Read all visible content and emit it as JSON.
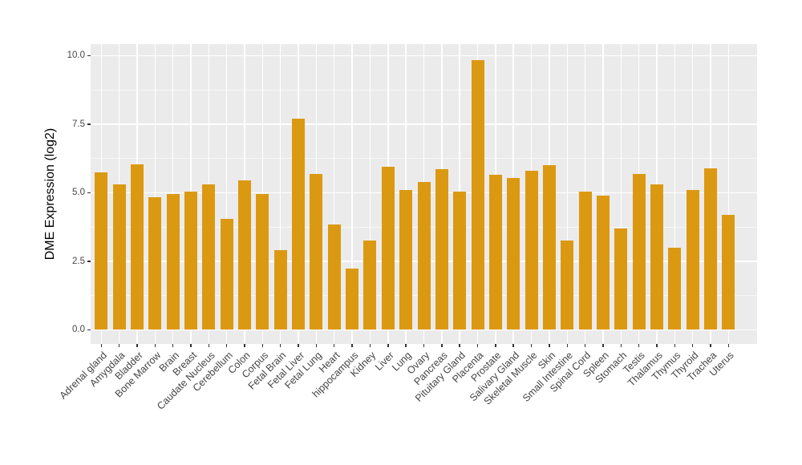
{
  "figure": {
    "background": "#FFFFFF"
  },
  "chart_data": {
    "type": "bar",
    "title": "",
    "xlabel": "",
    "ylabel": "DME Expression (log2)",
    "categories": [
      "Adrenal gland",
      "Amygdala",
      "Bladder",
      "Bone Marrow",
      "Brain",
      "Breast",
      "Caudate Nucleus",
      "Cerebellum",
      "Colon",
      "Corpus",
      "Fetal Brain",
      "Fetal Liver",
      "Fetal Lung",
      "Heart",
      "hippocampus",
      "Kidney",
      "Liver",
      "Lung",
      "Ovary",
      "Pancreas",
      "Pituitary Gland",
      "Placenta",
      "Prostate",
      "Salivary Gland",
      "Skeletal Muscle",
      "Skin",
      "Small Intestine",
      "Spinal Cord",
      "Spleen",
      "Stomach",
      "Testis",
      "Thalamus",
      "Thymus",
      "Thyroid",
      "Trachea",
      "Uterus"
    ],
    "values": [
      5.75,
      5.3,
      6.05,
      4.85,
      4.95,
      5.05,
      5.3,
      4.05,
      5.45,
      4.95,
      2.9,
      7.7,
      5.7,
      3.85,
      2.25,
      3.25,
      5.95,
      5.1,
      5.4,
      5.85,
      5.05,
      9.85,
      5.65,
      5.55,
      5.8,
      6.0,
      3.25,
      5.05,
      4.9,
      3.7,
      5.7,
      5.3,
      3.0,
      5.1,
      5.9,
      4.2
    ],
    "ylim": [
      -0.5,
      10.45
    ],
    "yticks": {
      "values": [
        0,
        2.5,
        5,
        7.5,
        10
      ],
      "labels": [
        "0.0",
        "2.5",
        "5.0",
        "7.5",
        "10.0"
      ],
      "minor_values": [
        1.25,
        3.75,
        6.25,
        8.75
      ]
    },
    "grid": "on",
    "legend": "none",
    "style": {
      "bar_color": "#DB9912",
      "panel_background": "#EBEBEB",
      "gridline_color": "#FFFFFF",
      "axis_text_color": "#454545",
      "axis_title_color": "#000000",
      "tick_color": "#333333"
    }
  }
}
